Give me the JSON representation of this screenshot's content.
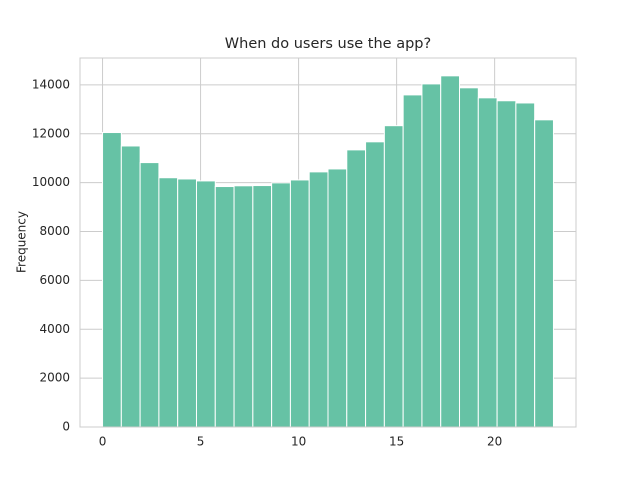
{
  "chart_data": {
    "type": "histogram",
    "title": "When do users use the app?",
    "y_label": "Frequency",
    "bins": [
      0,
      0.9583,
      1.9167,
      2.875,
      3.8333,
      4.7917,
      5.75,
      6.7083,
      7.6667,
      8.625,
      9.5833,
      10.5417,
      11.5,
      12.4583,
      13.4167,
      14.375,
      15.3333,
      16.2917,
      17.25,
      18.2083,
      19.1667,
      20.125,
      21.0833,
      22.0417,
      23
    ],
    "counts": [
      12050,
      11500,
      10820,
      10200,
      10150,
      10070,
      9840,
      9870,
      9880,
      9990,
      10110,
      10440,
      10560,
      11340,
      11670,
      12330,
      13590,
      14040,
      14370,
      13880,
      13470,
      13350,
      13260,
      12570
    ],
    "color": "#66c2a5",
    "xlim": [
      -1.15,
      24.15
    ],
    "xticks": [
      0,
      5,
      10,
      15,
      20
    ],
    "ylim": [
      0,
      15100
    ],
    "yticks": [
      0,
      2000,
      4000,
      6000,
      8000,
      10000,
      12000,
      14000
    ],
    "grid": true
  }
}
